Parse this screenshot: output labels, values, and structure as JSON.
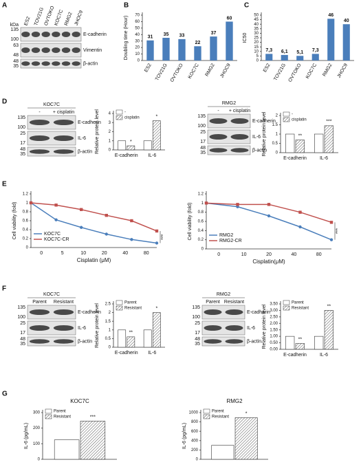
{
  "panels": [
    "A",
    "B",
    "C",
    "D",
    "E",
    "F",
    "G"
  ],
  "blots": [
    {
      "kda_header": "kDa",
      "lanes": [
        "ES2",
        "TOV21G",
        "OVTOKO",
        "KOC7C",
        "RMG2",
        "JHOC9"
      ],
      "bands": [
        {
          "name": "E-cadherin",
          "kda": [
            135,
            100
          ]
        },
        {
          "name": "Vimentin",
          "kda": [
            63,
            48
          ]
        },
        {
          "name": "β-actin",
          "kda": [
            48,
            35
          ]
        }
      ]
    },
    {
      "title": "KOC7C",
      "lanes": [
        "-",
        "+ cisplatin"
      ],
      "bands": [
        {
          "name": "E-cadherin",
          "kda": [
            135,
            100
          ]
        },
        {
          "name": "IL-6",
          "kda": [
            25,
            17
          ]
        },
        {
          "name": "β-actin",
          "kda": [
            48,
            35
          ]
        }
      ]
    },
    {
      "title": "RMG2",
      "lanes": [
        "-",
        "+ cisplatin"
      ],
      "bands": [
        {
          "name": "E-cadherin",
          "kda": [
            135,
            100
          ]
        },
        {
          "name": "IL-6",
          "kda": [
            25,
            17
          ]
        },
        {
          "name": "β-actin",
          "kda": [
            48,
            35
          ]
        }
      ]
    },
    {
      "title": "KOC7C",
      "lanes": [
        "Parent",
        "Resistant"
      ],
      "bands": [
        {
          "name": "E-cadherin",
          "kda": [
            135,
            100
          ]
        },
        {
          "name": "IL-6",
          "kda": [
            25,
            17
          ]
        },
        {
          "name": "β-actin",
          "kda": [
            48,
            35
          ]
        }
      ]
    },
    {
      "title": "RMG2",
      "lanes": [
        "Parent",
        "Resistant"
      ],
      "bands": [
        {
          "name": "E-cadherin",
          "kda": [
            135,
            100
          ]
        },
        {
          "name": "IL-6",
          "kda": [
            25,
            17
          ]
        },
        {
          "name": "β-actin",
          "kda": [
            48,
            35
          ]
        }
      ]
    }
  ],
  "chart_data": [
    {
      "type": "bar",
      "y_label": "Doubling time (Hour)",
      "categories": [
        "ES2",
        "TOV21G",
        "OVTOKO",
        "KOC7C",
        "RMG2",
        "JHOC9"
      ],
      "values": [
        31,
        35,
        33,
        22,
        37,
        60
      ],
      "color": "#4a7ebb",
      "ylim": [
        0,
        70
      ],
      "yticks": [
        0,
        10,
        20,
        30,
        40,
        50,
        60,
        70
      ]
    },
    {
      "type": "bar",
      "y_label": "IC50",
      "categories": [
        "ES2",
        "TOV21G",
        "OVTOKO",
        "KOC7C",
        "RMG2",
        "JHOC9"
      ],
      "values": [
        7.3,
        6.1,
        5.1,
        7.3,
        46,
        40
      ],
      "value_labels": [
        "7,3",
        "6,1",
        "5,1",
        "7,3",
        "46",
        "40"
      ],
      "color": "#4a7ebb",
      "ylim": [
        0,
        50
      ],
      "yticks": [
        0,
        5,
        10,
        15,
        20,
        25,
        30,
        35,
        40,
        45,
        50
      ]
    },
    {
      "type": "bar",
      "y_label": "Relative protein level",
      "categories": [
        "E-cadherin",
        "IL-6"
      ],
      "series": [
        {
          "name": "-",
          "color": "#ffffff",
          "values": [
            1,
            1
          ]
        },
        {
          "name": "cisplatin",
          "color": "#ffffff",
          "hatch": true,
          "values": [
            0.45,
            3.2
          ]
        }
      ],
      "annotations": [
        "*",
        "*"
      ],
      "ylim": [
        0,
        4
      ],
      "yticks": [
        0,
        1,
        2,
        3,
        4
      ]
    },
    {
      "type": "bar",
      "y_label": "Relative protein level",
      "categories": [
        "E-cadherin",
        "IL-6"
      ],
      "series": [
        {
          "name": "-",
          "color": "#ffffff",
          "values": [
            1,
            1
          ]
        },
        {
          "name": "cisplatin",
          "color": "#ffffff",
          "hatch": true,
          "values": [
            0.68,
            1.45
          ]
        }
      ],
      "annotations": [
        "**",
        "***"
      ],
      "ylim": [
        0,
        2
      ],
      "yticks": [
        0,
        0.5,
        1,
        1.5,
        2
      ]
    },
    {
      "type": "line",
      "x_label": "Cisplatin (μM)",
      "y_label": "Cell viability (fold)",
      "categories": [
        "0",
        "5",
        "10",
        "20",
        "40",
        "80"
      ],
      "series": [
        {
          "name": "KOC7C",
          "color": "#4a7ebb",
          "values": [
            1,
            0.62,
            0.45,
            0.3,
            0.18,
            0.1
          ]
        },
        {
          "name": "KOC7C-CR",
          "color": "#c0504d",
          "values": [
            1,
            0.95,
            0.85,
            0.72,
            0.6,
            0.37
          ]
        }
      ],
      "annotation": "***",
      "ylim": [
        0,
        1.2
      ],
      "yticks": [
        0,
        0.2,
        0.4,
        0.6,
        0.8,
        1,
        1.2
      ]
    },
    {
      "type": "line",
      "x_label": "Cisplatin(μM)",
      "y_label": "Cell viability (fold)",
      "categories": [
        "0",
        "10",
        "20",
        "40",
        "80"
      ],
      "series": [
        {
          "name": "RMG2",
          "color": "#4a7ebb",
          "values": [
            1,
            0.92,
            0.72,
            0.48,
            0.2
          ]
        },
        {
          "name": "RMG2-CR",
          "color": "#c0504d",
          "values": [
            1,
            0.97,
            0.97,
            0.8,
            0.58
          ]
        }
      ],
      "annotation": "***",
      "ylim": [
        0,
        1.2
      ],
      "yticks": [
        0,
        0.2,
        0.4,
        0.6,
        0.8,
        1,
        1.2
      ]
    },
    {
      "type": "bar",
      "y_label": "Relative protein level",
      "categories": [
        "E-cadherin",
        "IL-6"
      ],
      "series": [
        {
          "name": "Parent",
          "color": "#ffffff",
          "values": [
            1,
            1
          ]
        },
        {
          "name": "Resistant",
          "color": "#ffffff",
          "hatch": true,
          "values": [
            0.6,
            2
          ]
        }
      ],
      "annotations": [
        "**",
        "*"
      ],
      "ylim": [
        0,
        2.5
      ],
      "yticks": [
        0,
        0.5,
        1,
        1.5,
        2,
        2.5
      ]
    },
    {
      "type": "bar",
      "y_label": "Relative protein level",
      "categories": [
        "E-cadherin",
        "IL-6"
      ],
      "series": [
        {
          "name": "Parent",
          "color": "#ffffff",
          "values": [
            1,
            1
          ]
        },
        {
          "name": "Resistant",
          "color": "#ffffff",
          "hatch": true,
          "values": [
            0.45,
            3
          ]
        }
      ],
      "annotations": [
        "**",
        "**"
      ],
      "ylim": [
        0,
        3.5
      ],
      "yticks": [
        {
          "value": 0,
          "label": "0.00"
        },
        {
          "value": 0.5,
          "label": "0.50"
        },
        {
          "value": 1,
          "label": "1.00"
        },
        {
          "value": 1.5,
          "label": "1.50"
        },
        {
          "value": 2,
          "label": "2.00"
        },
        {
          "value": 2.5,
          "label": "2.50"
        },
        {
          "value": 3,
          "label": "3.00"
        },
        {
          "value": 3.5,
          "label": "3.50"
        }
      ]
    },
    {
      "type": "bar",
      "title": "KOC7C",
      "y_label": "IL-6 (pg/mL)",
      "categories": [
        null
      ],
      "series": [
        {
          "name": "Parent",
          "color": "#ffffff",
          "values": [
            125
          ]
        },
        {
          "name": "Resistant",
          "color": "#ffffff",
          "hatch": true,
          "values": [
            245
          ]
        }
      ],
      "annotations": [
        "***"
      ],
      "ylim": [
        0,
        300
      ],
      "yticks": [
        0,
        100,
        200,
        300
      ]
    },
    {
      "type": "bar",
      "title": "RMG2",
      "y_label": "IL-6 (pg/mL)",
      "categories": [
        null
      ],
      "series": [
        {
          "name": "Parent",
          "color": "#ffffff",
          "values": [
            300
          ]
        },
        {
          "name": "Resistant",
          "color": "#ffffff",
          "hatch": true,
          "values": [
            890
          ]
        }
      ],
      "annotations": [
        "*"
      ],
      "ylim": [
        0,
        1000
      ],
      "yticks": [
        0,
        200,
        400,
        600,
        800,
        1000
      ]
    }
  ]
}
